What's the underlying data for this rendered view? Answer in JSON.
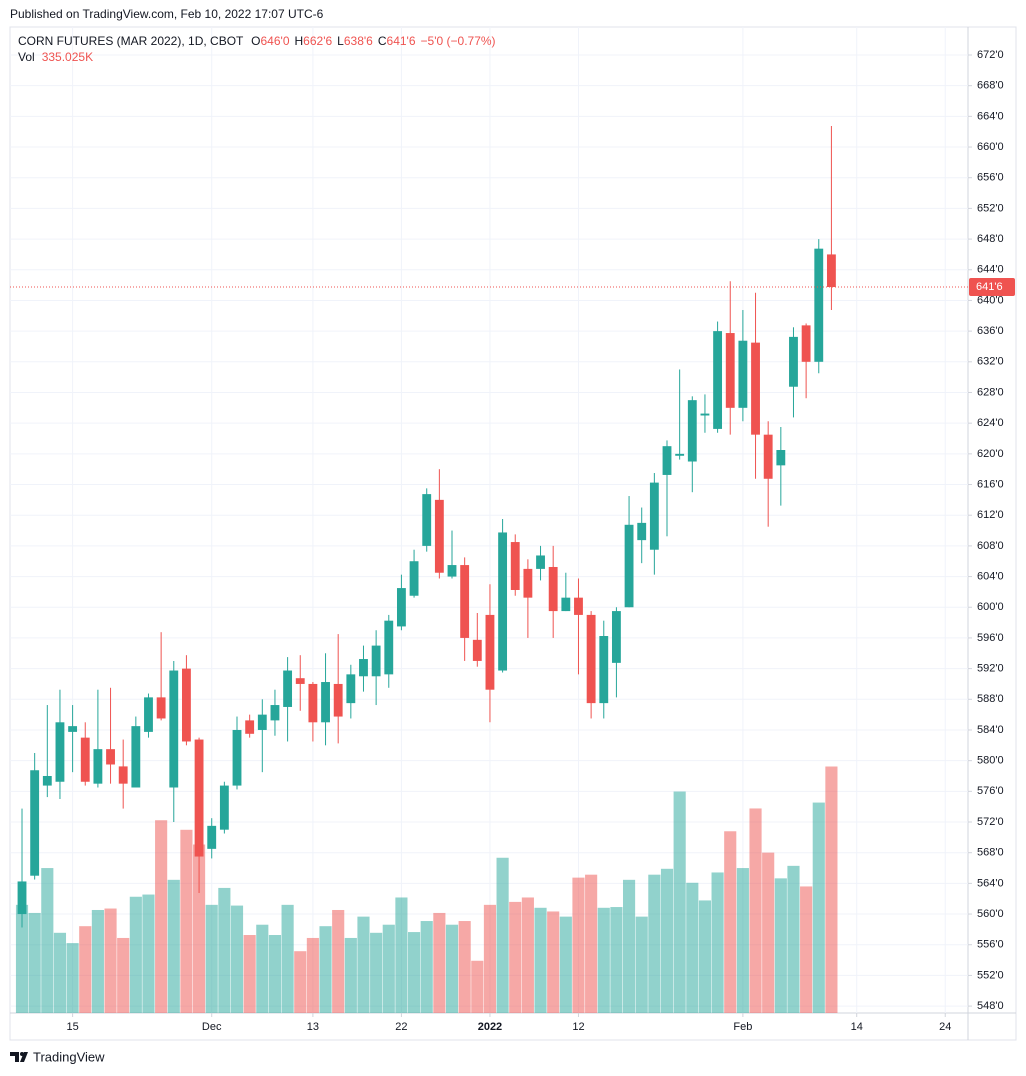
{
  "chart_data": {
    "type": "candlestick",
    "published": "Published on TradingView.com, Feb 10, 2022 17:07 UTC-6",
    "symbol": "CORN FUTURES (MAR 2022), 1D, CBOT",
    "ohlc_legend": [
      {
        "key": "O",
        "value": "646'0"
      },
      {
        "key": "H",
        "value": "662'6"
      },
      {
        "key": "L",
        "value": "638'6"
      },
      {
        "key": "C",
        "value": "641'6"
      }
    ],
    "change": "−5'0 (−0.77%)",
    "volume_title": "Vol",
    "volume_label": "335.025K",
    "brand": "TradingView",
    "up_color": "#26a69a",
    "down_color": "#ef5350",
    "open": [
      560.0,
      565.0,
      576.75,
      577.25,
      583.75,
      583.0,
      577.0,
      581.5,
      579.25,
      576.5,
      583.75,
      588.25,
      576.5,
      592.0,
      582.75,
      568.5,
      571.0,
      576.75,
      585.25,
      584.0,
      585.25,
      587.0,
      590.75,
      590.0,
      585.0,
      590.0,
      587.5,
      591.0,
      591.0,
      591.25,
      597.5,
      601.5,
      608.0,
      614.0,
      604.0,
      605.5,
      595.75,
      599.0,
      591.75,
      608.5,
      605.0,
      605.0,
      605.25,
      599.5,
      601.25,
      599.0,
      587.5,
      592.75,
      600.0,
      608.75,
      607.5,
      617.25,
      619.75,
      619.0,
      625.0,
      623.25,
      635.75,
      626.0,
      634.5,
      622.5,
      618.5,
      628.75,
      636.75,
      632.0,
      646.0
    ],
    "high": [
      573.75,
      581.0,
      587.25,
      589.25,
      587.25,
      585.0,
      589.25,
      589.5,
      582.75,
      585.75,
      588.75,
      596.75,
      593.0,
      593.75,
      583.0,
      572.5,
      577.25,
      585.75,
      586.0,
      588.0,
      589.25,
      593.5,
      593.75,
      590.25,
      594.0,
      596.5,
      592.5,
      595.0,
      597.0,
      599.0,
      604.25,
      607.5,
      615.5,
      618.0,
      610.0,
      606.5,
      599.25,
      603.0,
      611.5,
      609.5,
      606.25,
      608.0,
      608.0,
      604.5,
      603.75,
      599.5,
      598.25,
      600.0,
      614.5,
      613.0,
      617.5,
      621.75,
      631.0,
      627.5,
      627.75,
      637.25,
      642.5,
      638.75,
      641.0,
      624.25,
      623.5,
      636.5,
      637.0,
      648.0,
      662.75
    ],
    "low": [
      558.25,
      564.5,
      575.25,
      575.0,
      578.5,
      576.75,
      576.5,
      577.0,
      573.75,
      576.5,
      583.0,
      585.25,
      572.0,
      582.0,
      562.75,
      567.25,
      570.5,
      576.25,
      583.0,
      578.5,
      583.25,
      582.5,
      586.5,
      582.5,
      582.0,
      582.25,
      585.5,
      589.0,
      587.25,
      589.5,
      597.0,
      601.25,
      607.25,
      603.75,
      603.75,
      593.0,
      592.25,
      585.0,
      591.5,
      601.5,
      596.0,
      603.5,
      596.0,
      599.5,
      591.25,
      585.5,
      585.5,
      588.25,
      600.0,
      605.75,
      604.25,
      609.25,
      619.25,
      615.0,
      622.75,
      622.75,
      622.5,
      624.25,
      616.75,
      610.5,
      613.25,
      624.75,
      627.25,
      630.5,
      638.75
    ],
    "close": [
      564.25,
      578.75,
      578.0,
      585.0,
      584.5,
      577.25,
      581.5,
      579.5,
      577.0,
      584.5,
      588.25,
      585.5,
      591.75,
      582.5,
      567.5,
      571.5,
      576.75,
      584.0,
      583.5,
      586.0,
      587.25,
      591.75,
      590.0,
      585.0,
      590.25,
      585.75,
      591.25,
      593.25,
      595.0,
      598.25,
      602.5,
      606.0,
      614.75,
      604.5,
      605.5,
      596.0,
      593.0,
      589.25,
      609.75,
      602.25,
      601.25,
      606.75,
      599.5,
      601.25,
      599.0,
      587.5,
      596.25,
      599.5,
      610.75,
      611.0,
      616.25,
      621.0,
      620.0,
      627.0,
      625.25,
      636.0,
      626.0,
      634.75,
      622.5,
      616.75,
      620.5,
      635.25,
      632.0,
      646.75,
      641.75
    ],
    "volume": [
      147,
      136,
      197,
      109,
      95,
      118,
      140,
      142,
      102,
      158,
      161,
      262,
      181,
      249,
      229,
      147,
      170,
      146,
      106,
      120,
      106,
      147,
      84,
      102,
      118,
      140,
      102,
      131,
      109,
      120,
      157,
      110,
      125,
      136,
      120,
      125,
      71,
      147,
      211,
      151,
      157,
      143,
      138,
      131,
      184,
      188,
      143,
      144,
      181,
      131,
      188,
      196,
      301,
      177,
      153,
      191,
      247,
      197,
      278,
      218,
      183,
      200,
      172,
      286,
      335.025
    ],
    "last_price": {
      "value": 641.75,
      "label": "641'6"
    },
    "xlim": [
      -0.95,
      74.8
    ],
    "xticks": [
      {
        "value": 4,
        "label": "15"
      },
      {
        "value": 15,
        "label": "Dec"
      },
      {
        "value": 23,
        "label": "13"
      },
      {
        "value": 30,
        "label": "22"
      },
      {
        "value": 37,
        "label": "2022"
      },
      {
        "value": 44,
        "label": "12"
      },
      {
        "value": 57,
        "label": "Feb"
      },
      {
        "value": 66,
        "label": "14"
      },
      {
        "value": 73,
        "label": "24"
      }
    ],
    "ylim": [
      547.1,
      675.65
    ],
    "yticks": [
      {
        "value": 548,
        "label": "548'0"
      },
      {
        "value": 552,
        "label": "552'0"
      },
      {
        "value": 556,
        "label": "556'0"
      },
      {
        "value": 560,
        "label": "560'0"
      },
      {
        "value": 564,
        "label": "564'0"
      },
      {
        "value": 568,
        "label": "568'0"
      },
      {
        "value": 572,
        "label": "572'0"
      },
      {
        "value": 576,
        "label": "576'0"
      },
      {
        "value": 580,
        "label": "580'0"
      },
      {
        "value": 584,
        "label": "584'0"
      },
      {
        "value": 588,
        "label": "588'0"
      },
      {
        "value": 592,
        "label": "592'0"
      },
      {
        "value": 596,
        "label": "596'0"
      },
      {
        "value": 600,
        "label": "600'0"
      },
      {
        "value": 604,
        "label": "604'0"
      },
      {
        "value": 608,
        "label": "608'0"
      },
      {
        "value": 612,
        "label": "612'0"
      },
      {
        "value": 616,
        "label": "616'0"
      },
      {
        "value": 620,
        "label": "620'0"
      },
      {
        "value": 624,
        "label": "624'0"
      },
      {
        "value": 628,
        "label": "628'0"
      },
      {
        "value": 632,
        "label": "632'0"
      },
      {
        "value": 636,
        "label": "636'0"
      },
      {
        "value": 640,
        "label": "640'0"
      },
      {
        "value": 644,
        "label": "644'0"
      },
      {
        "value": 648,
        "label": "648'0"
      },
      {
        "value": 652,
        "label": "652'0"
      },
      {
        "value": 656,
        "label": "656'0"
      },
      {
        "value": 660,
        "label": "660'0"
      },
      {
        "value": 664,
        "label": "664'0"
      },
      {
        "value": 668,
        "label": "668'0"
      },
      {
        "value": 672,
        "label": "672'0"
      }
    ],
    "grid": true
  }
}
